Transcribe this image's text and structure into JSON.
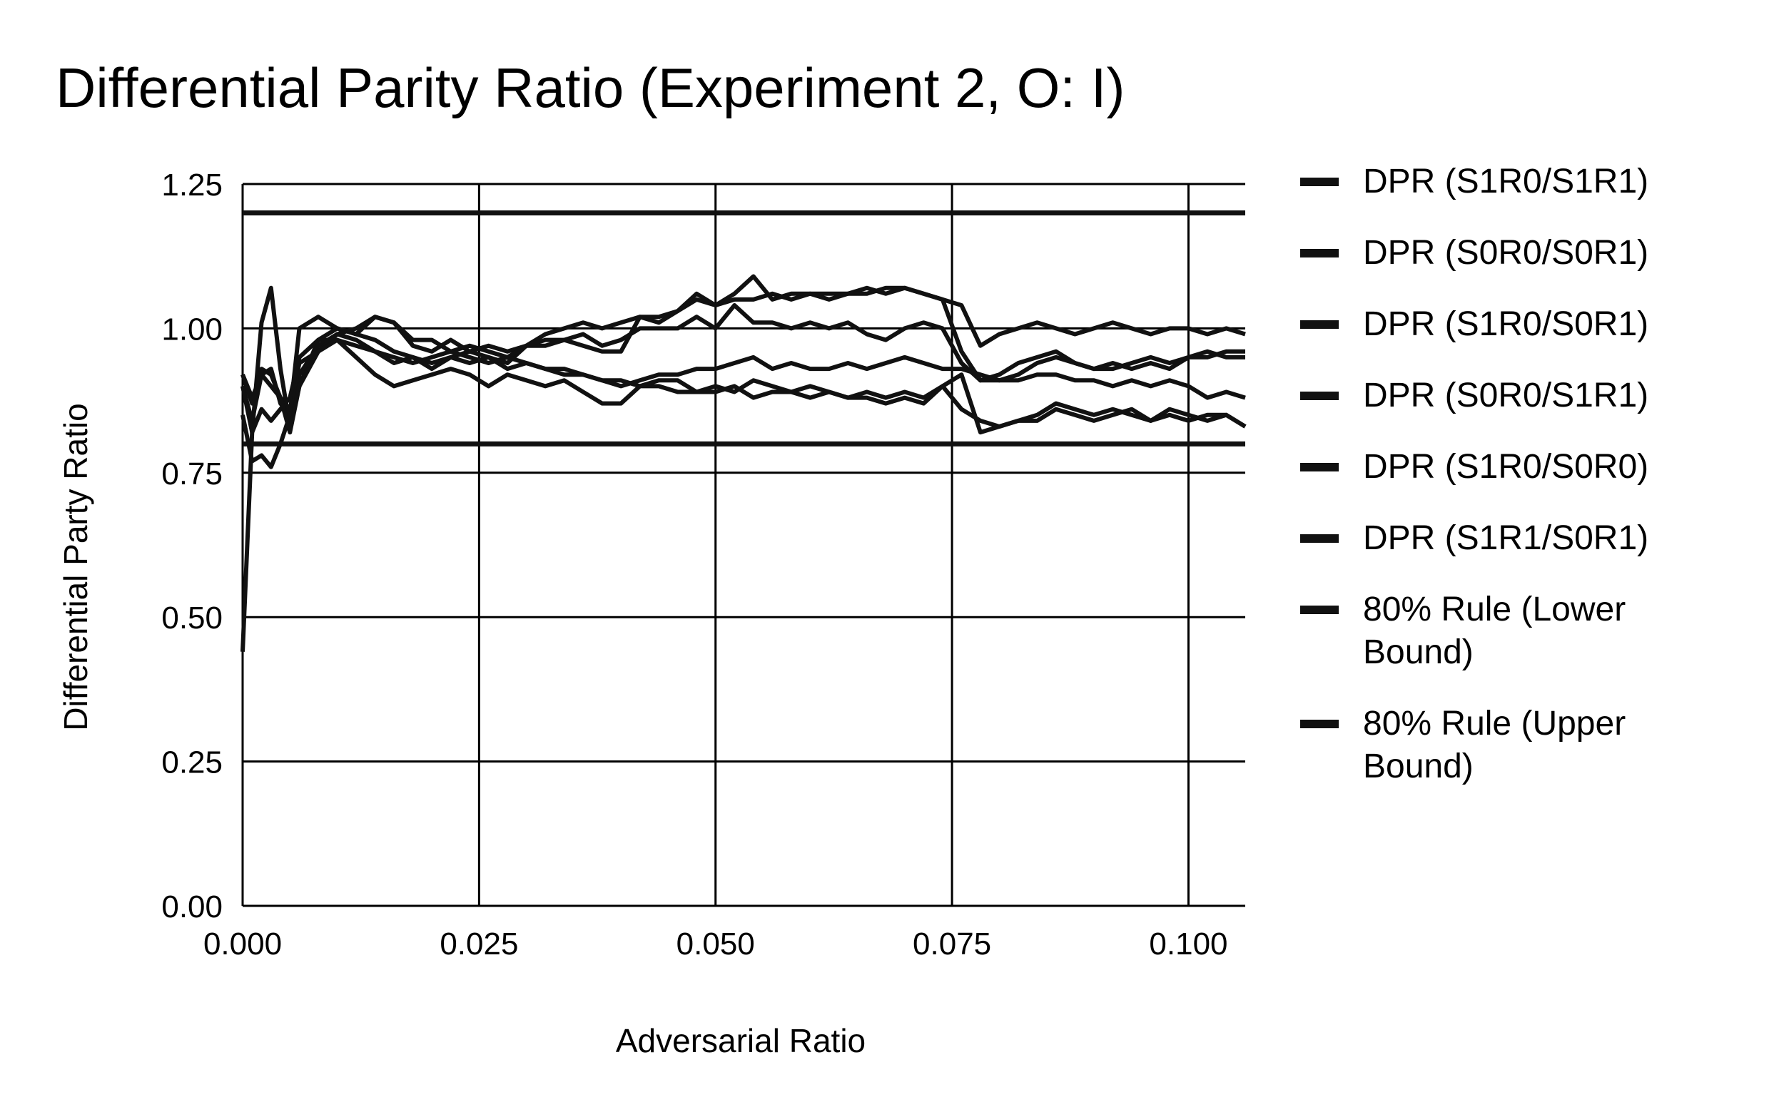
{
  "chart_data": {
    "type": "line",
    "title": "Differential Parity Ratio (Experiment 2, O: I)",
    "xlabel": "Adversarial Ratio",
    "ylabel": "Differential Party Ratio",
    "xlim": [
      0,
      0.106
    ],
    "ylim": [
      0,
      1.25
    ],
    "xticks": [
      "0.000",
      "0.025",
      "0.050",
      "0.075",
      "0.100"
    ],
    "yticks": [
      "0.00",
      "0.25",
      "0.50",
      "0.75",
      "1.00",
      "1.25"
    ],
    "grid": true,
    "legend_position": "right",
    "line_color": "#111111",
    "x": [
      0,
      0.001,
      0.002,
      0.003,
      0.004,
      0.005,
      0.006,
      0.008,
      0.01,
      0.012,
      0.014,
      0.016,
      0.018,
      0.02,
      0.022,
      0.024,
      0.026,
      0.028,
      0.03,
      0.032,
      0.034,
      0.036,
      0.038,
      0.04,
      0.042,
      0.044,
      0.046,
      0.048,
      0.05,
      0.052,
      0.054,
      0.056,
      0.058,
      0.06,
      0.062,
      0.064,
      0.066,
      0.068,
      0.07,
      0.072,
      0.074,
      0.076,
      0.078,
      0.08,
      0.082,
      0.084,
      0.086,
      0.088,
      0.09,
      0.092,
      0.094,
      0.096,
      0.098,
      0.1,
      0.102,
      0.104,
      0.106
    ],
    "series": [
      {
        "name": "DPR (S1R0/S1R1)",
        "values": [
          0.44,
          0.82,
          1.01,
          1.07,
          0.93,
          0.83,
          0.9,
          0.98,
          1.0,
          0.99,
          0.98,
          0.96,
          0.95,
          0.94,
          0.95,
          0.96,
          0.95,
          0.93,
          0.94,
          0.93,
          0.93,
          0.92,
          0.91,
          0.91,
          0.9,
          0.9,
          0.89,
          0.89,
          0.9,
          0.89,
          0.91,
          0.9,
          0.89,
          0.9,
          0.89,
          0.88,
          0.89,
          0.88,
          0.89,
          0.88,
          0.9,
          0.86,
          0.84,
          0.83,
          0.84,
          0.85,
          0.87,
          0.86,
          0.85,
          0.86,
          0.85,
          0.84,
          0.86,
          0.85,
          0.84,
          0.85,
          0.83
        ]
      },
      {
        "name": "DPR (S0R0/S0R1)",
        "values": [
          0.85,
          0.77,
          0.78,
          0.76,
          0.8,
          0.85,
          0.92,
          0.97,
          0.99,
          0.98,
          0.96,
          0.94,
          0.95,
          0.93,
          0.95,
          0.94,
          0.95,
          0.94,
          0.97,
          0.99,
          1.0,
          1.01,
          1.0,
          1.01,
          1.02,
          1.01,
          1.03,
          1.05,
          1.04,
          1.05,
          1.05,
          1.06,
          1.05,
          1.06,
          1.06,
          1.06,
          1.07,
          1.06,
          1.07,
          1.06,
          1.05,
          1.04,
          0.97,
          0.99,
          1.0,
          1.01,
          1.0,
          0.99,
          1.0,
          1.01,
          1.0,
          0.99,
          1.0,
          1.0,
          0.99,
          1.0,
          0.99
        ]
      },
      {
        "name": "DPR (S1R0/S0R1)",
        "values": [
          0.92,
          0.88,
          0.92,
          0.93,
          0.87,
          0.85,
          1.0,
          1.02,
          1.0,
          0.99,
          1.02,
          1.01,
          0.97,
          0.96,
          0.98,
          0.96,
          0.97,
          0.96,
          0.97,
          0.97,
          0.98,
          0.97,
          0.96,
          0.96,
          1.02,
          1.02,
          1.03,
          1.06,
          1.04,
          1.06,
          1.09,
          1.05,
          1.06,
          1.06,
          1.05,
          1.06,
          1.06,
          1.07,
          1.07,
          1.06,
          1.05,
          0.96,
          0.91,
          0.92,
          0.94,
          0.95,
          0.96,
          0.94,
          0.93,
          0.94,
          0.93,
          0.94,
          0.93,
          0.95,
          0.95,
          0.96,
          0.96
        ]
      },
      {
        "name": "DPR (S0R0/S1R1)",
        "values": [
          0.9,
          0.84,
          0.92,
          0.9,
          0.88,
          0.86,
          0.94,
          0.96,
          0.99,
          1.0,
          1.02,
          1.01,
          0.98,
          0.98,
          0.96,
          0.97,
          0.96,
          0.95,
          0.97,
          0.98,
          0.98,
          0.99,
          0.97,
          0.98,
          1.0,
          1.0,
          1.0,
          1.02,
          1.0,
          1.04,
          1.01,
          1.01,
          1.0,
          1.01,
          1.0,
          1.01,
          0.99,
          0.98,
          1.0,
          1.01,
          1.0,
          0.94,
          0.91,
          0.91,
          0.92,
          0.94,
          0.95,
          0.94,
          0.93,
          0.93,
          0.94,
          0.95,
          0.94,
          0.95,
          0.96,
          0.95,
          0.95
        ]
      },
      {
        "name": "DPR (S1R0/S0R0)",
        "values": [
          0.9,
          0.82,
          0.86,
          0.84,
          0.86,
          0.88,
          0.95,
          0.98,
          0.98,
          0.95,
          0.92,
          0.9,
          0.91,
          0.92,
          0.93,
          0.92,
          0.9,
          0.92,
          0.91,
          0.9,
          0.91,
          0.89,
          0.87,
          0.87,
          0.9,
          0.91,
          0.91,
          0.89,
          0.89,
          0.9,
          0.88,
          0.89,
          0.89,
          0.88,
          0.89,
          0.88,
          0.88,
          0.87,
          0.88,
          0.87,
          0.9,
          0.92,
          0.82,
          0.83,
          0.84,
          0.84,
          0.86,
          0.85,
          0.84,
          0.85,
          0.86,
          0.84,
          0.85,
          0.84,
          0.85,
          0.85,
          0.83
        ]
      },
      {
        "name": "DPR (S1R1/S0R1)",
        "values": [
          0.92,
          0.87,
          0.93,
          0.92,
          0.88,
          0.82,
          0.9,
          0.96,
          0.98,
          0.97,
          0.96,
          0.95,
          0.94,
          0.95,
          0.96,
          0.95,
          0.94,
          0.95,
          0.94,
          0.93,
          0.92,
          0.92,
          0.91,
          0.9,
          0.91,
          0.92,
          0.92,
          0.93,
          0.93,
          0.94,
          0.95,
          0.93,
          0.94,
          0.93,
          0.93,
          0.94,
          0.93,
          0.94,
          0.95,
          0.94,
          0.93,
          0.93,
          0.92,
          0.91,
          0.91,
          0.92,
          0.92,
          0.91,
          0.91,
          0.9,
          0.91,
          0.9,
          0.91,
          0.9,
          0.88,
          0.89,
          0.88
        ]
      },
      {
        "name": "80% Rule (Lower Bound)",
        "constant": 0.8
      },
      {
        "name": "80% Rule (Upper Bound)",
        "constant": 1.2
      }
    ]
  }
}
